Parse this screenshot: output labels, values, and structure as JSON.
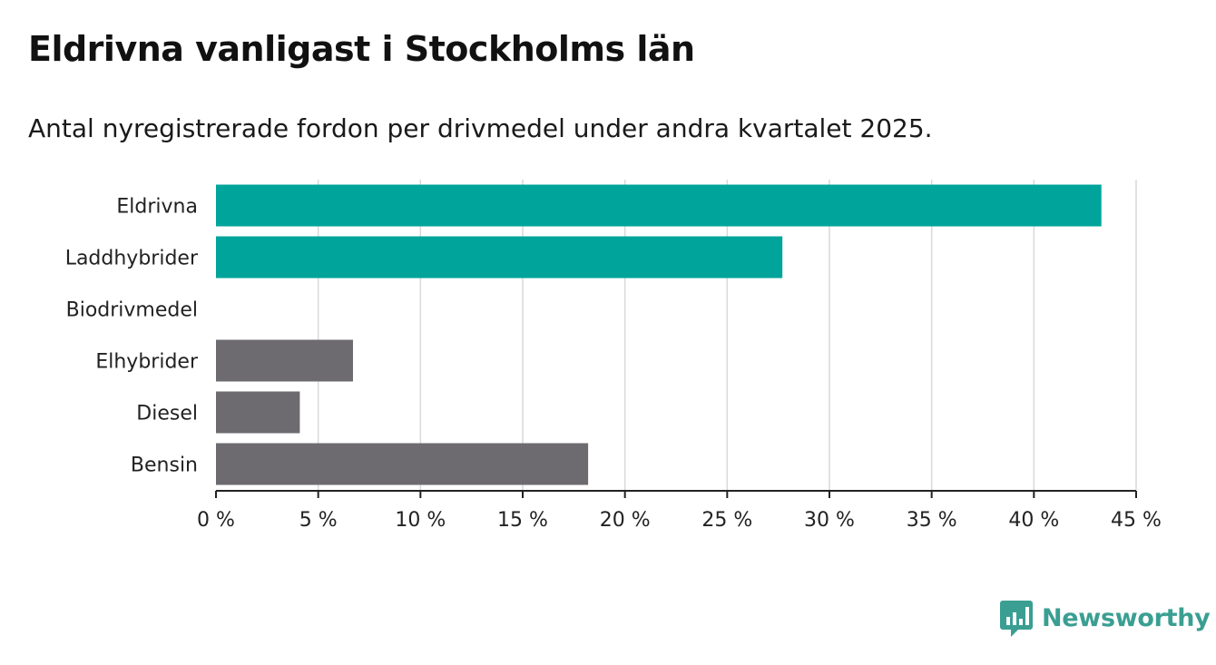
{
  "title": "Eldrivna vanligast i Stockholms län",
  "subtitle": "Antal nyregistrerade fordon per drivmedel under andra kvartalet 2025.",
  "brand": {
    "name": "Newsworthy",
    "color": "#3a9f92"
  },
  "colors": {
    "highlight": "#00a49a",
    "muted": "#6d6b70",
    "grid": "#d9d9d9",
    "axis": "#222222"
  },
  "chart_data": {
    "type": "bar",
    "orientation": "horizontal",
    "categories": [
      "Eldrivna",
      "Laddhybrider",
      "Biodrivmedel",
      "Elhybrider",
      "Diesel",
      "Bensin"
    ],
    "values": [
      43.3,
      27.7,
      0,
      6.7,
      4.1,
      18.2
    ],
    "highlighted": [
      true,
      true,
      false,
      false,
      false,
      false
    ],
    "xlim": [
      0,
      45
    ],
    "xticks": [
      0,
      5,
      10,
      15,
      20,
      25,
      30,
      35,
      40,
      45
    ],
    "xtick_labels": [
      "0 %",
      "5 %",
      "10 %",
      "15 %",
      "20 %",
      "25 %",
      "30 %",
      "35 %",
      "40 %",
      "45 %"
    ],
    "grid": true
  }
}
